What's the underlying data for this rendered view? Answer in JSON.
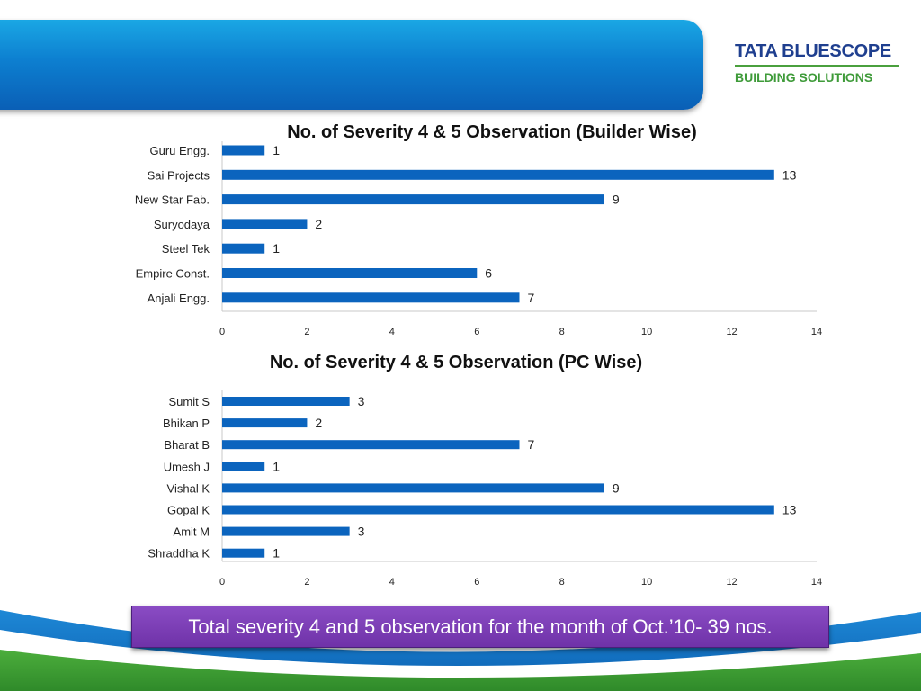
{
  "brand": {
    "name_line1": "TATA BLUESCOPE",
    "name_line2": "BUILDING SOLUTIONS",
    "colors": {
      "navy": "#1f3f8f",
      "green": "#3f9b3a",
      "header_blue": "#0d7fd0",
      "bar_blue": "#0b64be",
      "banner_purple": "#7a3db5"
    }
  },
  "footer": {
    "total_text": "Total severity 4 and 5 observation for the month of  Oct.’10- 39 nos."
  },
  "chart_data": [
    {
      "type": "bar",
      "orientation": "horizontal",
      "title": "No. of  Severity 4 & 5 Observation (Builder  Wise)",
      "categories": [
        "Guru Engg.",
        "Sai Projects",
        "New Star Fab.",
        "Suryodaya",
        "Steel Tek",
        "Empire Const.",
        "Anjali Engg."
      ],
      "values": [
        1,
        13,
        9,
        2,
        1,
        6,
        7
      ],
      "xlim": [
        0,
        14
      ],
      "xticks": [
        0,
        2,
        4,
        6,
        8,
        10,
        12,
        14
      ],
      "data_labels": true,
      "grid": false
    },
    {
      "type": "bar",
      "orientation": "horizontal",
      "title": "No. of  Severity 4 & 5 Observation (PC Wise)",
      "categories": [
        "Sumit S",
        "Bhikan P",
        "Bharat B",
        "Umesh J",
        "Vishal K",
        "Gopal K",
        "Amit M",
        "Shraddha K"
      ],
      "values": [
        3,
        2,
        7,
        1,
        9,
        13,
        3,
        1
      ],
      "xlim": [
        0,
        14
      ],
      "xticks": [
        0,
        2,
        4,
        6,
        8,
        10,
        12,
        14
      ],
      "data_labels": true,
      "grid": false
    }
  ]
}
